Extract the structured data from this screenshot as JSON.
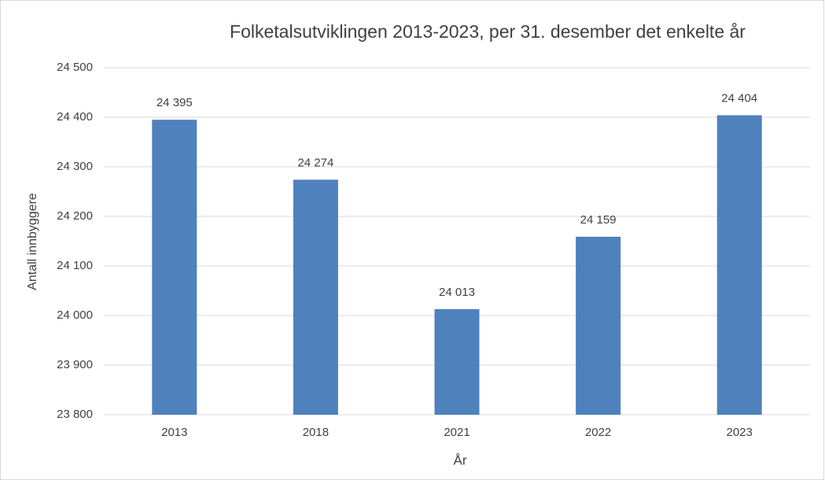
{
  "chart_data": {
    "type": "bar",
    "title": "Folketalsutviklingen 2013-2023, per 31. desember det enkelte år",
    "x_label": "År",
    "y_label": "Antall innbyggere",
    "categories": [
      "2013",
      "2018",
      "2021",
      "2022",
      "2023"
    ],
    "values": [
      24395,
      24274,
      24013,
      24159,
      24404
    ],
    "value_labels": [
      "24 395",
      "24 274",
      "24 013",
      "24 159",
      "24 404"
    ],
    "color": "#4f81bd",
    "ylim": [
      23800,
      24500
    ],
    "yticks": [
      {
        "value": 23800,
        "label": "23 800"
      },
      {
        "value": 23900,
        "label": "23 900"
      },
      {
        "value": 24000,
        "label": "24 000"
      },
      {
        "value": 24100,
        "label": "24 100"
      },
      {
        "value": 24200,
        "label": "24 200"
      },
      {
        "value": 24300,
        "label": "24 300"
      },
      {
        "value": 24400,
        "label": "24 400"
      },
      {
        "value": 24500,
        "label": "24 500"
      }
    ],
    "grid": true
  }
}
